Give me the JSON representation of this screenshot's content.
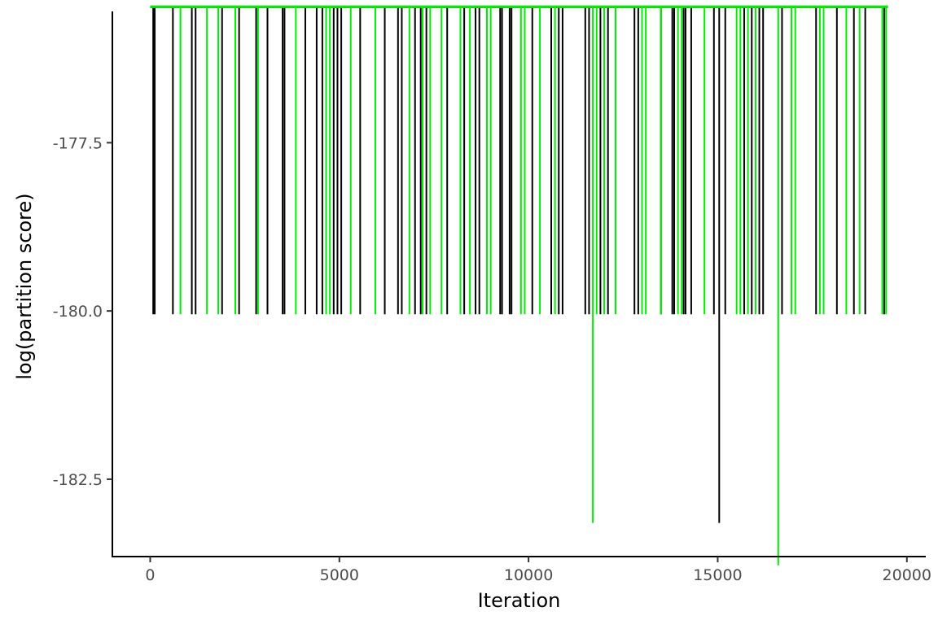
{
  "chart_data": {
    "type": "line",
    "title": "",
    "xlabel": "Iteration",
    "ylabel": "log(partition score)",
    "xlim": [
      -1000,
      20500
    ],
    "ylim": [
      -183.65,
      -175.5
    ],
    "x_ticks": [
      0,
      5000,
      10000,
      15000,
      20000
    ],
    "x_tick_labels": [
      "0",
      "5000",
      "10000",
      "15000",
      "20000"
    ],
    "y_ticks": [
      -177.5,
      -180.0,
      -182.5
    ],
    "y_tick_labels": [
      "-177.5",
      "-180.0",
      "-182.5"
    ],
    "grid": false,
    "legend": "none",
    "baseline": -175.48,
    "series": [
      {
        "color": "#000000",
        "x": [
          0,
          19500
        ],
        "y": [
          -175.48,
          -175.48
        ],
        "dips": [
          {
            "x": 80,
            "y": -180.05
          },
          {
            "x": 120,
            "y": -180.05
          },
          {
            "x": 600,
            "y": -180.05
          },
          {
            "x": 1100,
            "y": -180.05
          },
          {
            "x": 1200,
            "y": -180.05
          },
          {
            "x": 1900,
            "y": -180.05
          },
          {
            "x": 2350,
            "y": -180.05
          },
          {
            "x": 2800,
            "y": -180.05
          },
          {
            "x": 3100,
            "y": -180.05
          },
          {
            "x": 3500,
            "y": -180.05
          },
          {
            "x": 3550,
            "y": -180.05
          },
          {
            "x": 4100,
            "y": -180.05
          },
          {
            "x": 4400,
            "y": -180.05
          },
          {
            "x": 4550,
            "y": -180.05
          },
          {
            "x": 4850,
            "y": -180.05
          },
          {
            "x": 4950,
            "y": -180.05
          },
          {
            "x": 5050,
            "y": -180.05
          },
          {
            "x": 5550,
            "y": -180.05
          },
          {
            "x": 6200,
            "y": -180.05
          },
          {
            "x": 6550,
            "y": -180.05
          },
          {
            "x": 6650,
            "y": -180.05
          },
          {
            "x": 7000,
            "y": -180.05
          },
          {
            "x": 7150,
            "y": -180.05
          },
          {
            "x": 7300,
            "y": -180.05
          },
          {
            "x": 7850,
            "y": -180.05
          },
          {
            "x": 8300,
            "y": -180.05
          },
          {
            "x": 8600,
            "y": -180.05
          },
          {
            "x": 8700,
            "y": -180.05
          },
          {
            "x": 9250,
            "y": -180.05
          },
          {
            "x": 9300,
            "y": -180.05
          },
          {
            "x": 9500,
            "y": -180.05
          },
          {
            "x": 9550,
            "y": -180.05
          },
          {
            "x": 10100,
            "y": -180.05
          },
          {
            "x": 10600,
            "y": -180.05
          },
          {
            "x": 10800,
            "y": -180.05
          },
          {
            "x": 10900,
            "y": -180.05
          },
          {
            "x": 11500,
            "y": -180.05
          },
          {
            "x": 11600,
            "y": -180.05
          },
          {
            "x": 11900,
            "y": -180.05
          },
          {
            "x": 12100,
            "y": -180.05
          },
          {
            "x": 12800,
            "y": -180.05
          },
          {
            "x": 12900,
            "y": -180.05
          },
          {
            "x": 13500,
            "y": -180.05
          },
          {
            "x": 13800,
            "y": -180.05
          },
          {
            "x": 13850,
            "y": -180.05
          },
          {
            "x": 14100,
            "y": -180.05
          },
          {
            "x": 14150,
            "y": -180.05
          },
          {
            "x": 14300,
            "y": -180.05
          },
          {
            "x": 14900,
            "y": -180.05
          },
          {
            "x": 15040,
            "y": -183.15
          },
          {
            "x": 15200,
            "y": -180.05
          },
          {
            "x": 15700,
            "y": -180.05
          },
          {
            "x": 15900,
            "y": -180.05
          },
          {
            "x": 16100,
            "y": -180.05
          },
          {
            "x": 16200,
            "y": -180.05
          },
          {
            "x": 16700,
            "y": -180.05
          },
          {
            "x": 17600,
            "y": -180.05
          },
          {
            "x": 18150,
            "y": -180.05
          },
          {
            "x": 18600,
            "y": -180.05
          },
          {
            "x": 18900,
            "y": -180.05
          },
          {
            "x": 19400,
            "y": -180.05
          }
        ]
      },
      {
        "color": "#00ee00",
        "x": [
          0,
          19500
        ],
        "y": [
          -175.48,
          -175.48
        ],
        "dips": [
          {
            "x": 800,
            "y": -180.05
          },
          {
            "x": 1500,
            "y": -180.05
          },
          {
            "x": 1800,
            "y": -180.05
          },
          {
            "x": 2250,
            "y": -180.05
          },
          {
            "x": 2850,
            "y": -180.05
          },
          {
            "x": 3850,
            "y": -180.05
          },
          {
            "x": 4650,
            "y": -180.05
          },
          {
            "x": 4750,
            "y": -180.05
          },
          {
            "x": 5300,
            "y": -180.05
          },
          {
            "x": 5950,
            "y": -180.05
          },
          {
            "x": 6850,
            "y": -180.05
          },
          {
            "x": 7200,
            "y": -180.05
          },
          {
            "x": 7400,
            "y": -180.05
          },
          {
            "x": 7700,
            "y": -180.05
          },
          {
            "x": 8200,
            "y": -180.05
          },
          {
            "x": 8450,
            "y": -180.05
          },
          {
            "x": 8900,
            "y": -180.05
          },
          {
            "x": 9000,
            "y": -180.05
          },
          {
            "x": 9800,
            "y": -180.05
          },
          {
            "x": 9900,
            "y": -180.05
          },
          {
            "x": 10300,
            "y": -180.05
          },
          {
            "x": 10700,
            "y": -180.05
          },
          {
            "x": 11700,
            "y": -183.15
          },
          {
            "x": 11800,
            "y": -180.05
          },
          {
            "x": 12000,
            "y": -180.05
          },
          {
            "x": 12300,
            "y": -180.05
          },
          {
            "x": 13000,
            "y": -180.05
          },
          {
            "x": 13100,
            "y": -180.05
          },
          {
            "x": 13500,
            "y": -180.05
          },
          {
            "x": 13950,
            "y": -180.05
          },
          {
            "x": 14050,
            "y": -180.05
          },
          {
            "x": 14650,
            "y": -180.05
          },
          {
            "x": 15500,
            "y": -180.05
          },
          {
            "x": 15600,
            "y": -180.05
          },
          {
            "x": 15800,
            "y": -180.05
          },
          {
            "x": 16000,
            "y": -180.05
          },
          {
            "x": 16600,
            "y": -183.78
          },
          {
            "x": 16950,
            "y": -180.05
          },
          {
            "x": 17050,
            "y": -180.05
          },
          {
            "x": 17700,
            "y": -180.05
          },
          {
            "x": 17800,
            "y": -180.05
          },
          {
            "x": 18400,
            "y": -180.05
          },
          {
            "x": 18750,
            "y": -180.05
          },
          {
            "x": 19350,
            "y": -180.05
          },
          {
            "x": 19450,
            "y": -180.05
          }
        ]
      }
    ]
  }
}
